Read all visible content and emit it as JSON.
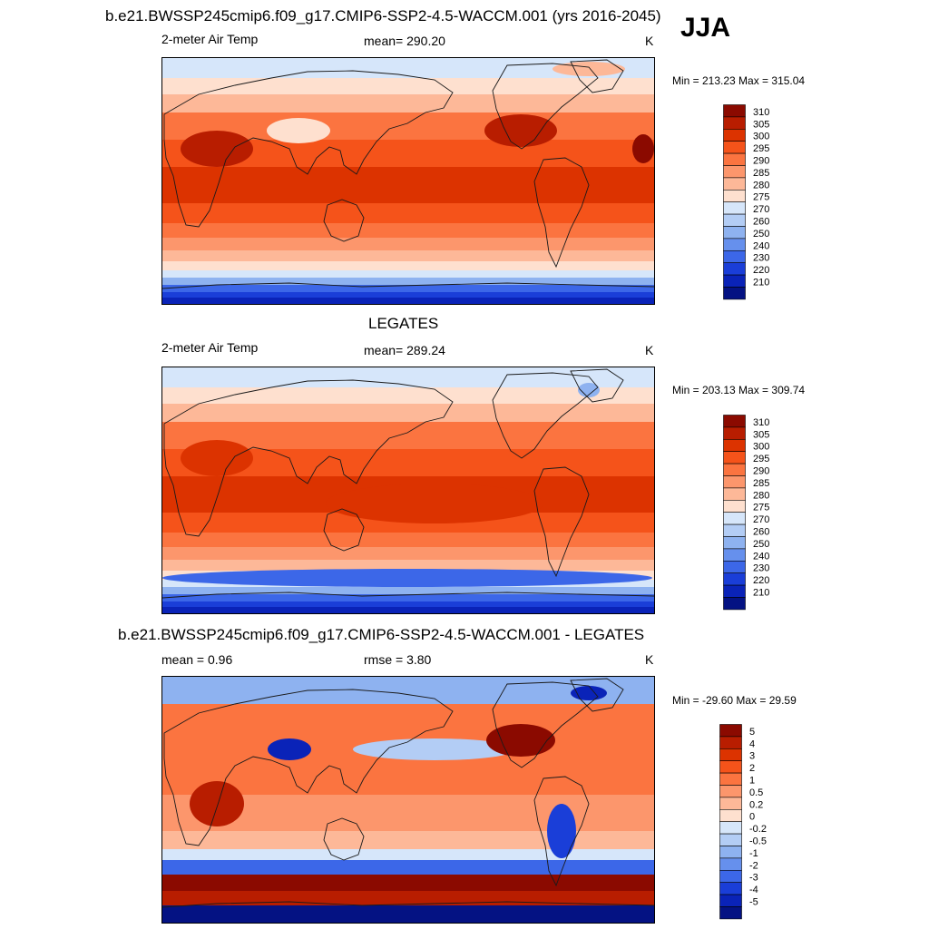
{
  "season": "JJA",
  "panels": [
    {
      "title": "b.e21.BWSSP245cmip6.f09_g17.CMIP6-SSP2-4.5-WACCM.001 (yrs 2016-2045)",
      "left_label": "2-meter Air Temp",
      "center_label": "mean= 290.20",
      "units": "K",
      "minmax": "Min = 213.23 Max = 315.04"
    },
    {
      "title": "LEGATES",
      "left_label": "2-meter Air Temp",
      "center_label": "mean= 289.24",
      "units": "K",
      "minmax": "Min = 203.13 Max = 309.74"
    },
    {
      "title": "b.e21.BWSSP245cmip6.f09_g17.CMIP6-SSP2-4.5-WACCM.001 - LEGATES",
      "left_label": "mean =   0.96",
      "center_label": "rmse =   3.80",
      "units": "K",
      "minmax": "Min = -29.60 Max =  29.59"
    }
  ],
  "chart_data": [
    {
      "type": "heatmap",
      "title": "b.e21.BWSSP245cmip6.f09_g17.CMIP6-SSP2-4.5-WACCM.001 (yrs 2016-2045)",
      "variable": "2-meter Air Temp",
      "units": "K",
      "mean": 290.2,
      "min": 213.23,
      "max": 315.04,
      "colorbar_levels": [
        "310",
        "305",
        "300",
        "295",
        "290",
        "285",
        "280",
        "275",
        "270",
        "260",
        "250",
        "240",
        "230",
        "220",
        "210"
      ],
      "colorbar_colors": [
        "#8b0a00",
        "#b81d00",
        "#dc3300",
        "#f5531a",
        "#fb7440",
        "#fc966c",
        "#fdb898",
        "#fee0cf",
        "#d6e6fa",
        "#b3cdf5",
        "#8eb2f0",
        "#6690ed",
        "#3c67e8",
        "#1a3ed8",
        "#0a23b8",
        "#041283"
      ]
    },
    {
      "type": "heatmap",
      "title": "LEGATES",
      "variable": "2-meter Air Temp",
      "units": "K",
      "mean": 289.24,
      "min": 203.13,
      "max": 309.74,
      "colorbar_levels": [
        "310",
        "305",
        "300",
        "295",
        "290",
        "285",
        "280",
        "275",
        "270",
        "260",
        "250",
        "240",
        "230",
        "220",
        "210"
      ],
      "colorbar_colors": [
        "#8b0a00",
        "#b81d00",
        "#dc3300",
        "#f5531a",
        "#fb7440",
        "#fc966c",
        "#fdb898",
        "#fee0cf",
        "#d6e6fa",
        "#b3cdf5",
        "#8eb2f0",
        "#6690ed",
        "#3c67e8",
        "#1a3ed8",
        "#0a23b8",
        "#041283"
      ]
    },
    {
      "type": "heatmap",
      "title": "b.e21.BWSSP245cmip6.f09_g17.CMIP6-SSP2-4.5-WACCM.001 - LEGATES",
      "units": "K",
      "mean": 0.96,
      "rmse": 3.8,
      "min": -29.6,
      "max": 29.59,
      "colorbar_levels": [
        "5",
        "4",
        "3",
        "2",
        "1",
        "0.5",
        "0.2",
        "0",
        "-0.2",
        "-0.5",
        "-1",
        "-2",
        "-3",
        "-4",
        "-5"
      ],
      "colorbar_colors": [
        "#8b0a00",
        "#b81d00",
        "#dc3300",
        "#f5531a",
        "#fb7440",
        "#fc966c",
        "#fdb898",
        "#fee0cf",
        "#d6e6fa",
        "#b3cdf5",
        "#8eb2f0",
        "#6690ed",
        "#3c67e8",
        "#1a3ed8",
        "#0a23b8",
        "#041283"
      ]
    }
  ]
}
